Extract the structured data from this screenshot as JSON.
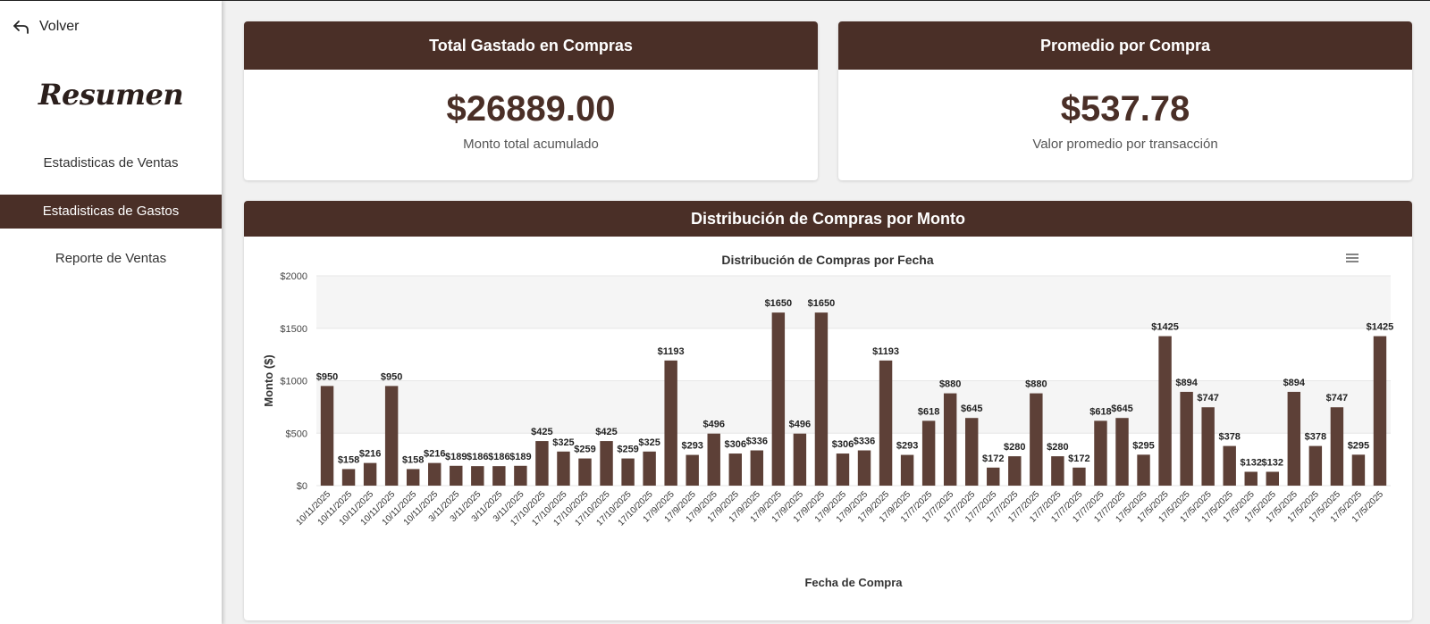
{
  "sidebar": {
    "back_label": "Volver",
    "brand": "Resumen",
    "items": [
      {
        "label": "Estadisticas de Ventas",
        "active": false
      },
      {
        "label": "Estadisticas de Gastos",
        "active": true
      },
      {
        "label": "Reporte de Ventas",
        "active": false
      }
    ]
  },
  "cards": {
    "total": {
      "title": "Total Gastado en Compras",
      "value": "$26889.00",
      "caption": "Monto total acumulado"
    },
    "average": {
      "title": "Promedio por Compra",
      "value": "$537.78",
      "caption": "Valor promedio por transacción"
    }
  },
  "chart_section": {
    "title": "Distribución de Compras por Monto"
  },
  "colors": {
    "brand": "#4a2f27",
    "bar": "#5d4037"
  },
  "chart_data": {
    "type": "bar",
    "title": "Distribución de Compras por Fecha",
    "xlabel": "Fecha de Compra",
    "ylabel": "Monto ($)",
    "ylim": [
      0,
      2000
    ],
    "yticks": [
      "$0",
      "$500",
      "$1000",
      "$1500",
      "$2000"
    ],
    "grid": true,
    "menu_icon": "hamburger-menu-icon",
    "categories": [
      "10/11/2025",
      "10/11/2025",
      "10/11/2025",
      "10/11/2025",
      "10/11/2025",
      "10/11/2025",
      "3/11/2025",
      "3/11/2025",
      "3/11/2025",
      "3/11/2025",
      "17/10/2025",
      "17/10/2025",
      "17/10/2025",
      "17/10/2025",
      "17/10/2025",
      "17/10/2025",
      "17/9/2025",
      "17/9/2025",
      "17/9/2025",
      "17/9/2025",
      "17/9/2025",
      "17/9/2025",
      "17/9/2025",
      "17/9/2025",
      "17/9/2025",
      "17/9/2025",
      "17/9/2025",
      "17/9/2025",
      "17/7/2025",
      "17/7/2025",
      "17/7/2025",
      "17/7/2025",
      "17/7/2025",
      "17/7/2025",
      "17/7/2025",
      "17/7/2025",
      "17/7/2025",
      "17/7/2025",
      "17/5/2025",
      "17/5/2025",
      "17/5/2025",
      "17/5/2025",
      "17/5/2025",
      "17/5/2025",
      "17/5/2025",
      "17/5/2025",
      "17/5/2025",
      "17/5/2025",
      "17/5/2025",
      "17/5/2025"
    ],
    "values": [
      950,
      158,
      216,
      950,
      158,
      216,
      189,
      186,
      186,
      189,
      425,
      325,
      259,
      425,
      259,
      325,
      1193,
      293,
      496,
      306,
      336,
      1650,
      496,
      1650,
      306,
      336,
      1193,
      293,
      618,
      880,
      645,
      172,
      280,
      880,
      280,
      172,
      618,
      645,
      295,
      1425,
      894,
      747,
      378,
      132,
      132,
      894,
      378,
      747,
      295,
      1425
    ],
    "labels": [
      "$950",
      "$158",
      "$216",
      "$950",
      "$158",
      "$216",
      "$189",
      "$186",
      "$186",
      "$189",
      "$425",
      "$325",
      "$259",
      "$425",
      "$259",
      "$325",
      "$1193",
      "$293",
      "$496",
      "$306",
      "$336",
      "$1650",
      "$496",
      "$1650",
      "$306",
      "$336",
      "$1193",
      "$293",
      "$618",
      "$880",
      "$645",
      "$172",
      "$280",
      "$880",
      "$280",
      "$172",
      "$618",
      "$645",
      "$295",
      "$1425",
      "$894",
      "$747",
      "$378",
      "$132",
      "$132",
      "$894",
      "$378",
      "$747",
      "$295",
      "$1425"
    ]
  }
}
